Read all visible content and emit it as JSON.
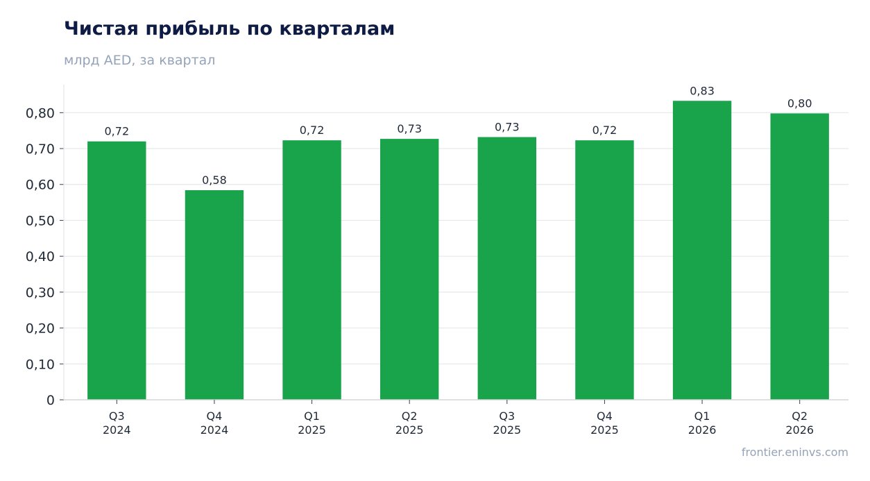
{
  "header": {
    "title": "Чистая прибыль по кварталам",
    "subtitle": "млрд AED, за квартал"
  },
  "footer": {
    "source": "frontier.eninvs.com"
  },
  "colors": {
    "bar": "#19a34a",
    "grid": "#e5e7eb",
    "axis": "#d1d5db",
    "title": "#0d1b45",
    "muted": "#94a3b8"
  },
  "chart_data": {
    "type": "bar",
    "title": "Чистая прибыль по кварталам",
    "subtitle": "млрд AED, за квартал",
    "xlabel": "",
    "ylabel": "",
    "categories": [
      [
        "Q3",
        "2024"
      ],
      [
        "Q4",
        "2024"
      ],
      [
        "Q1",
        "2025"
      ],
      [
        "Q2",
        "2025"
      ],
      [
        "Q3",
        "2025"
      ],
      [
        "Q4",
        "2025"
      ],
      [
        "Q1",
        "2026"
      ],
      [
        "Q2",
        "2026"
      ]
    ],
    "values": [
      0.72,
      0.584,
      0.723,
      0.727,
      0.732,
      0.723,
      0.833,
      0.798
    ],
    "data_labels": [
      "0,72",
      "0,58",
      "0,72",
      "0,73",
      "0,73",
      "0,72",
      "0,83",
      "0,80"
    ],
    "yticks": [
      0,
      0.1,
      0.2,
      0.3,
      0.4,
      0.5,
      0.6,
      0.7,
      0.8
    ],
    "ytick_labels": [
      "0",
      "0,10",
      "0,20",
      "0,30",
      "0,40",
      "0,50",
      "0,60",
      "0,70",
      "0,80"
    ],
    "ylim": [
      0,
      0.878
    ],
    "grid": true,
    "legend": "none"
  }
}
